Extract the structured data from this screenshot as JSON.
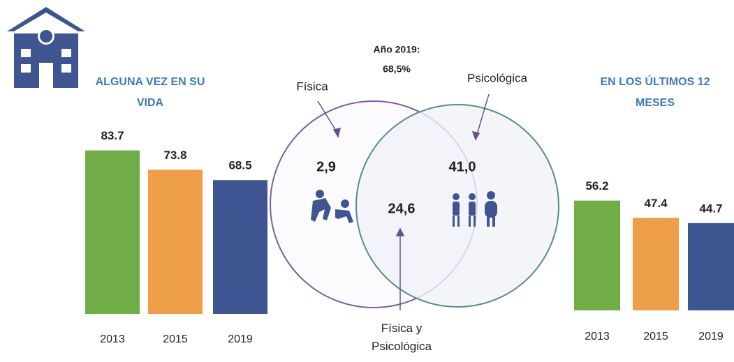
{
  "chart_data": [
    {
      "type": "bar",
      "title": "ALGUNA VEZ EN SU VIDA",
      "categories": [
        "2013",
        "2015",
        "2019"
      ],
      "values": [
        83.7,
        73.8,
        68.5
      ],
      "colors": [
        "#70ad47",
        "#ed9e48",
        "#3f5591"
      ]
    },
    {
      "type": "venn",
      "title": "Año 2019:",
      "subtitle": "68,5%",
      "categories": [
        "Física",
        "Física y Psicológica",
        "Psicológica"
      ],
      "values": [
        2.9,
        24.6,
        41.0
      ],
      "value_labels": [
        "2,9",
        "24,6",
        "41,0"
      ]
    },
    {
      "type": "bar",
      "title": "EN LOS ÚLTIMOS 12 MESES",
      "categories": [
        "2013",
        "2015",
        "2019"
      ],
      "values": [
        56.2,
        47.4,
        44.7
      ],
      "colors": [
        "#70ad47",
        "#ed9e48",
        "#3f5591"
      ]
    }
  ]
}
